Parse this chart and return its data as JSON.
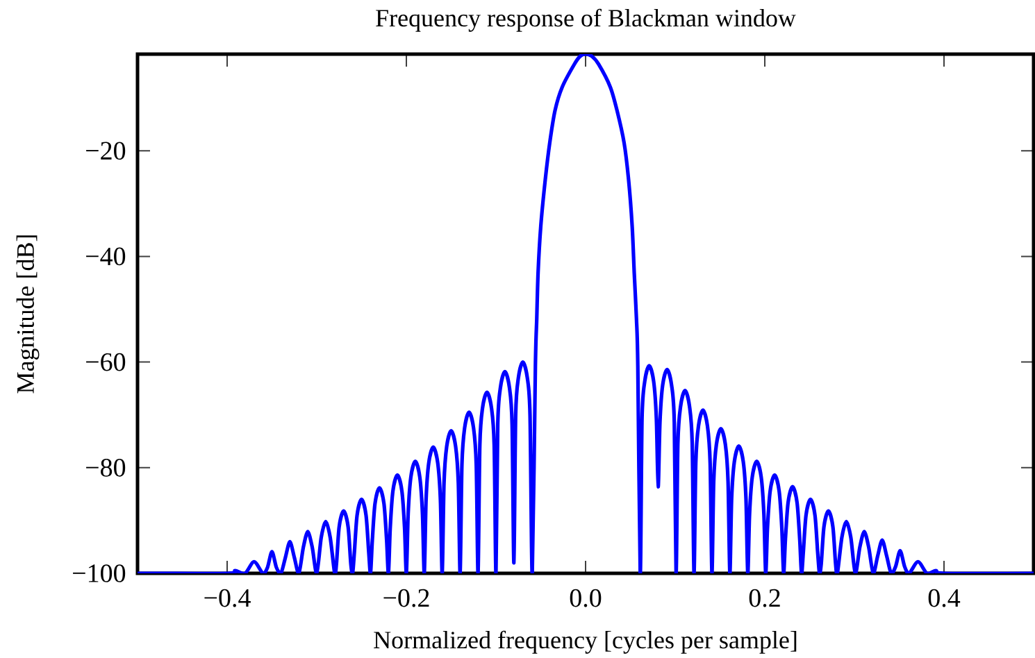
{
  "chart_data": {
    "type": "line",
    "title": "Frequency response of Blackman window",
    "xlabel": "Normalized frequency [cycles per sample]",
    "ylabel": "Magnitude [dB]",
    "x": [
      -0.5,
      -0.4,
      -0.391,
      -0.38,
      -0.37,
      -0.36,
      -0.355,
      -0.35,
      -0.345,
      -0.34,
      -0.335,
      -0.33,
      -0.325,
      -0.32,
      -0.315,
      -0.31,
      -0.305,
      -0.3,
      -0.295,
      -0.29,
      -0.285,
      -0.28,
      -0.278,
      -0.275,
      -0.27,
      -0.265,
      -0.262,
      -0.26,
      -0.258,
      -0.255,
      -0.25,
      -0.245,
      -0.242,
      -0.24,
      -0.238,
      -0.235,
      -0.23,
      -0.225,
      -0.222,
      -0.22,
      -0.218,
      -0.215,
      -0.21,
      -0.205,
      -0.202,
      -0.2,
      -0.198,
      -0.195,
      -0.19,
      -0.185,
      -0.182,
      -0.18,
      -0.178,
      -0.175,
      -0.17,
      -0.165,
      -0.162,
      -0.16,
      -0.158,
      -0.155,
      -0.15,
      -0.145,
      -0.142,
      -0.14,
      -0.138,
      -0.135,
      -0.13,
      -0.125,
      -0.122,
      -0.12,
      -0.118,
      -0.115,
      -0.11,
      -0.105,
      -0.102,
      -0.1,
      -0.098,
      -0.095,
      -0.09,
      -0.085,
      -0.082,
      -0.08,
      -0.078,
      -0.075,
      -0.07,
      -0.065,
      -0.062,
      -0.0595,
      -0.056,
      -0.0545,
      -0.053,
      -0.05,
      -0.045,
      -0.04,
      -0.034,
      -0.026,
      -0.0125,
      -0.006,
      0,
      0.007,
      0.0145,
      0.0275,
      0.035,
      0.043,
      0.048,
      0.052,
      0.0543,
      0.0568,
      0.0583,
      0.061,
      0.063,
      0.066,
      0.071,
      0.076,
      0.079,
      0.081,
      0.083,
      0.086,
      0.091,
      0.096,
      0.099,
      0.101,
      0.103,
      0.106,
      0.111,
      0.116,
      0.119,
      0.121,
      0.123,
      0.126,
      0.131,
      0.136,
      0.139,
      0.141,
      0.143,
      0.146,
      0.151,
      0.156,
      0.159,
      0.161,
      0.163,
      0.166,
      0.171,
      0.176,
      0.179,
      0.181,
      0.183,
      0.186,
      0.191,
      0.196,
      0.199,
      0.201,
      0.203,
      0.206,
      0.211,
      0.216,
      0.219,
      0.221,
      0.223,
      0.226,
      0.231,
      0.236,
      0.239,
      0.241,
      0.243,
      0.246,
      0.251,
      0.256,
      0.259,
      0.261,
      0.263,
      0.266,
      0.271,
      0.276,
      0.279,
      0.281,
      0.286,
      0.291,
      0.296,
      0.301,
      0.306,
      0.311,
      0.316,
      0.321,
      0.326,
      0.331,
      0.336,
      0.341,
      0.346,
      0.351,
      0.356,
      0.361,
      0.371,
      0.381,
      0.391,
      0.401,
      0.5
    ],
    "series": [
      {
        "color": "#0000ff",
        "values": [
          -100,
          -100,
          -99.5,
          -100,
          -97.8,
          -100,
          -98.9,
          -95.9,
          -98.9,
          -100,
          -97,
          -94,
          -97,
          -100,
          -95.1,
          -92.1,
          -95.1,
          -100,
          -93.2,
          -90.2,
          -93.2,
          -100,
          -98.2,
          -91.2,
          -88.2,
          -91.2,
          -98.2,
          -100,
          -96,
          -89,
          -86,
          -89,
          -96,
          -100,
          -93.8,
          -86.8,
          -83.8,
          -86.8,
          -93.8,
          -100,
          -91.4,
          -84.4,
          -81.4,
          -84.4,
          -91.4,
          -100,
          -88.8,
          -81.8,
          -78.8,
          -81.8,
          -88.8,
          -100,
          -86.1,
          -79.1,
          -76.1,
          -79.1,
          -86.1,
          -100,
          -83,
          -76,
          -73,
          -76,
          -83,
          -100,
          -79.5,
          -72.5,
          -69.5,
          -72.5,
          -79.5,
          -100,
          -75.7,
          -68.7,
          -65.7,
          -68.7,
          -75.7,
          -100,
          -71.8,
          -64.8,
          -61.8,
          -64.8,
          -71.8,
          -98,
          -70,
          -63,
          -60,
          -63,
          -70,
          -100,
          -60.7,
          -51.9,
          -43.1,
          -34.3,
          -25.5,
          -18.5,
          -12.3,
          -7.9,
          -3.6,
          -2.1,
          -1.7,
          -2.1,
          -3.6,
          -7.9,
          -12.3,
          -18.5,
          -25.5,
          -34.3,
          -43.1,
          -51.9,
          -60.7,
          -100,
          -70.7,
          -63.7,
          -60.7,
          -63.7,
          -70.7,
          -83.6,
          -71.4,
          -64.4,
          -61.4,
          -64.4,
          -71.4,
          -100,
          -75.4,
          -68.4,
          -65.4,
          -68.4,
          -75.4,
          -100,
          -79.1,
          -72.1,
          -69.1,
          -72.1,
          -79.1,
          -100,
          -82.6,
          -75.6,
          -72.6,
          -75.6,
          -82.6,
          -100,
          -85.9,
          -78.9,
          -75.9,
          -78.9,
          -85.9,
          -100,
          -88.8,
          -81.8,
          -78.8,
          -81.8,
          -88.8,
          -100,
          -91.4,
          -84.4,
          -81.4,
          -84.4,
          -91.4,
          -100,
          -93.6,
          -86.6,
          -83.6,
          -86.6,
          -93.6,
          -100,
          -96,
          -89,
          -86,
          -89,
          -96,
          -100,
          -98.2,
          -91.2,
          -88.2,
          -91.2,
          -98.2,
          -100,
          -93.2,
          -90.2,
          -93.2,
          -100,
          -95.1,
          -92.1,
          -95.1,
          -100,
          -96.7,
          -93.7,
          -96.7,
          -100,
          -98.7,
          -95.7,
          -98.7,
          -100,
          -97.8,
          -100,
          -99.5,
          -100,
          -100
        ]
      }
    ],
    "xlim": [
      -0.5,
      0.5
    ],
    "ylim": [
      -100,
      -1.7
    ],
    "xticks": [
      {
        "value": -0.4,
        "label": "−0.4"
      },
      {
        "value": -0.2,
        "label": "−0.2"
      },
      {
        "value": 0.0,
        "label": "0.0"
      },
      {
        "value": 0.2,
        "label": "0.2"
      },
      {
        "value": 0.4,
        "label": "0.4"
      }
    ],
    "yticks": [
      {
        "value": -20,
        "label": "−20"
      },
      {
        "value": -40,
        "label": "−40"
      },
      {
        "value": -60,
        "label": "−60"
      },
      {
        "value": -80,
        "label": "−80"
      },
      {
        "value": -100,
        "label": "−100"
      }
    ],
    "marker": "none",
    "line_style": "solid"
  }
}
